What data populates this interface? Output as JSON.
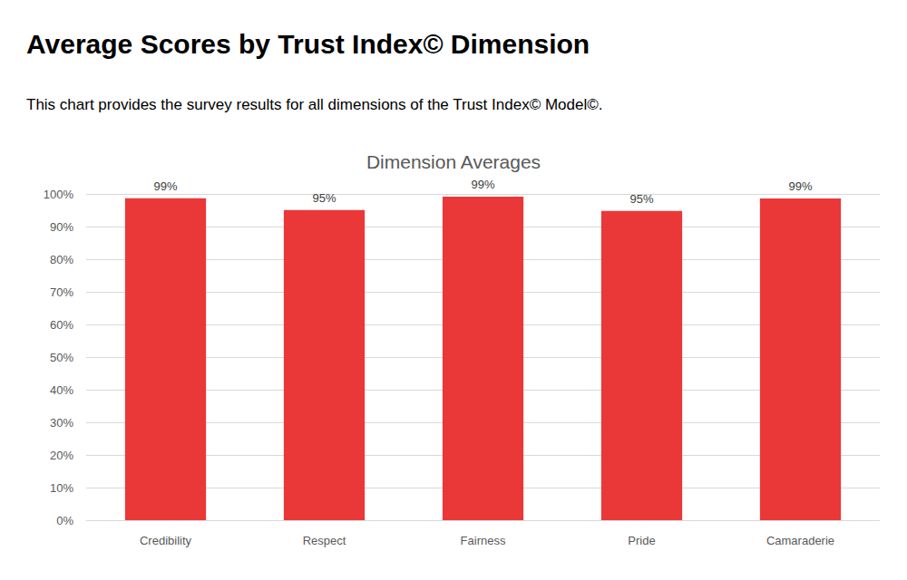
{
  "chart_data": {
    "type": "bar",
    "title": "Average Scores by Trust Index© Dimension",
    "subtitle": "This chart provides the survey results for all dimensions of the Trust Index© Model©.",
    "chart_title": "Dimension Averages",
    "categories": [
      "Credibility",
      "Respect",
      "Fairness",
      "Pride",
      "Camaraderie"
    ],
    "values": [
      98.7,
      95.1,
      99.2,
      94.8,
      98.6
    ],
    "value_labels": [
      "99%",
      "95%",
      "99%",
      "95%",
      "99%"
    ],
    "color": "#ea3838",
    "ylim": [
      0,
      100
    ],
    "yticks": [
      {
        "value": 0,
        "label": "0%"
      },
      {
        "value": 10,
        "label": "10%"
      },
      {
        "value": 20,
        "label": "20%"
      },
      {
        "value": 30,
        "label": "30%"
      },
      {
        "value": 40,
        "label": "40%"
      },
      {
        "value": 50,
        "label": "50%"
      },
      {
        "value": 60,
        "label": "60%"
      },
      {
        "value": 70,
        "label": "70%"
      },
      {
        "value": 80,
        "label": "80%"
      },
      {
        "value": 90,
        "label": "90%"
      },
      {
        "value": 100,
        "label": "100%"
      }
    ],
    "grid": true,
    "data_labels": true
  }
}
